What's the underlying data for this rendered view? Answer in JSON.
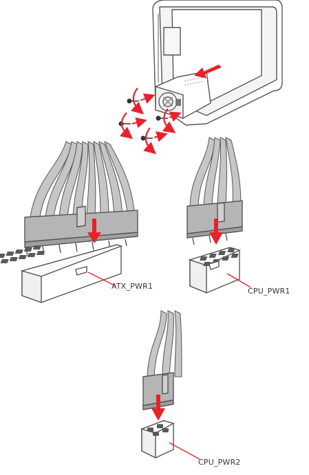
{
  "labels": {
    "atx": "ATX_PWR1",
    "cpu1": "CPU_PWR1",
    "cpu2": "CPU_PWR2"
  },
  "colors": {
    "line": "#555555",
    "cable": "#bdbdbd",
    "body": "#ffffff",
    "pin": "#5a5a5a",
    "accent": "#e8222a"
  }
}
